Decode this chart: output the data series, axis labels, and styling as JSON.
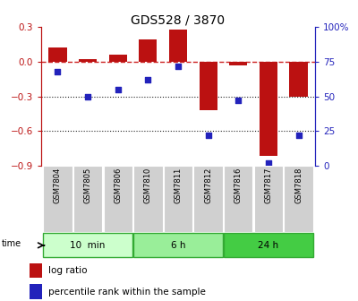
{
  "title": "GDS528 / 3870",
  "samples": [
    "GSM7804",
    "GSM7805",
    "GSM7806",
    "GSM7810",
    "GSM7811",
    "GSM7812",
    "GSM7816",
    "GSM7817",
    "GSM7818"
  ],
  "log_ratio": [
    0.12,
    0.02,
    0.06,
    0.19,
    0.28,
    -0.42,
    -0.03,
    -0.82,
    -0.3
  ],
  "percentile_rank": [
    68,
    50,
    55,
    62,
    72,
    22,
    47,
    2,
    22
  ],
  "groups": [
    {
      "label": "10  min",
      "start": 0,
      "end": 3,
      "color": "#ccffcc"
    },
    {
      "label": "6 h",
      "start": 3,
      "end": 6,
      "color": "#99ee99"
    },
    {
      "label": "24 h",
      "start": 6,
      "end": 9,
      "color": "#44cc44"
    }
  ],
  "ylim_left": [
    -0.9,
    0.3
  ],
  "ylim_right": [
    0,
    100
  ],
  "yticks_left": [
    -0.9,
    -0.6,
    -0.3,
    0.0,
    0.3
  ],
  "yticks_right": [
    0,
    25,
    50,
    75,
    100
  ],
  "bar_color": "#bb1111",
  "dot_color": "#2222bb",
  "hline_color": "#cc2222",
  "dotline_color": "#222222",
  "background_color": "#ffffff",
  "bar_width": 0.6
}
